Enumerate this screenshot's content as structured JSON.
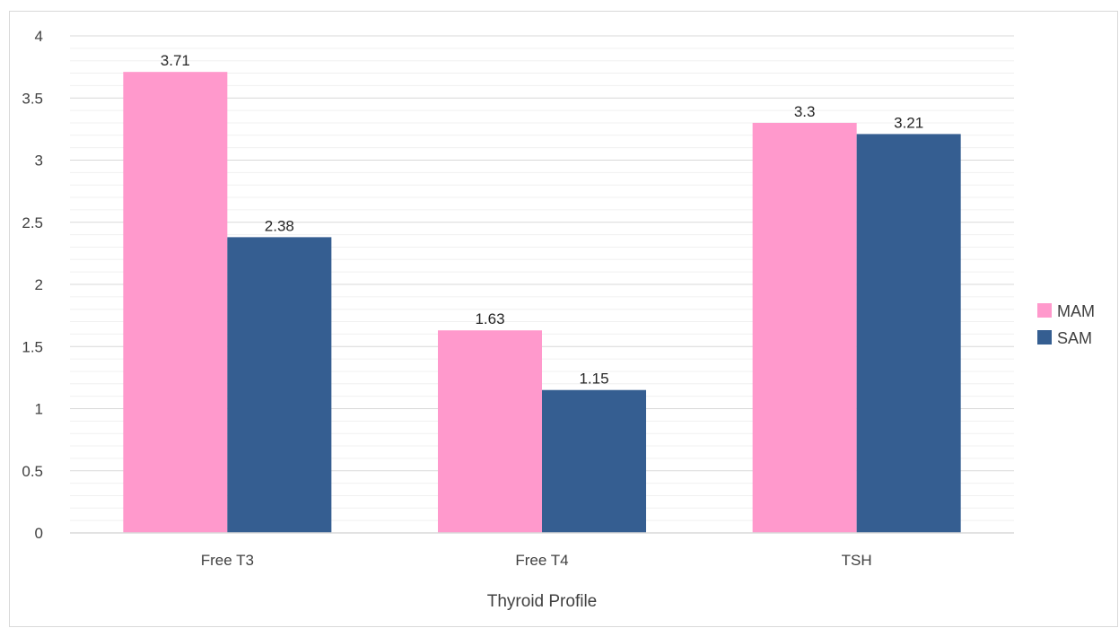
{
  "chart_data": {
    "type": "bar",
    "categories": [
      "Free T3",
      "Free T4",
      "TSH"
    ],
    "series": [
      {
        "name": "MAM",
        "color": "#ff99cc",
        "values": [
          3.71,
          1.63,
          3.3
        ],
        "labels": [
          "3.71",
          "1.63",
          "3.3"
        ]
      },
      {
        "name": "SAM",
        "color": "#355e91",
        "values": [
          2.38,
          1.15,
          3.21
        ],
        "labels": [
          "2.38",
          "1.15",
          "3.21"
        ]
      }
    ],
    "title": "",
    "xlabel": "Thyroid Profile",
    "ylabel": "",
    "ylim": [
      0,
      4
    ],
    "yticks": [
      "0",
      "0.5",
      "1",
      "1.5",
      "2",
      "2.5",
      "3",
      "3.5",
      "4"
    ],
    "grid": true,
    "legend_position": "right"
  }
}
